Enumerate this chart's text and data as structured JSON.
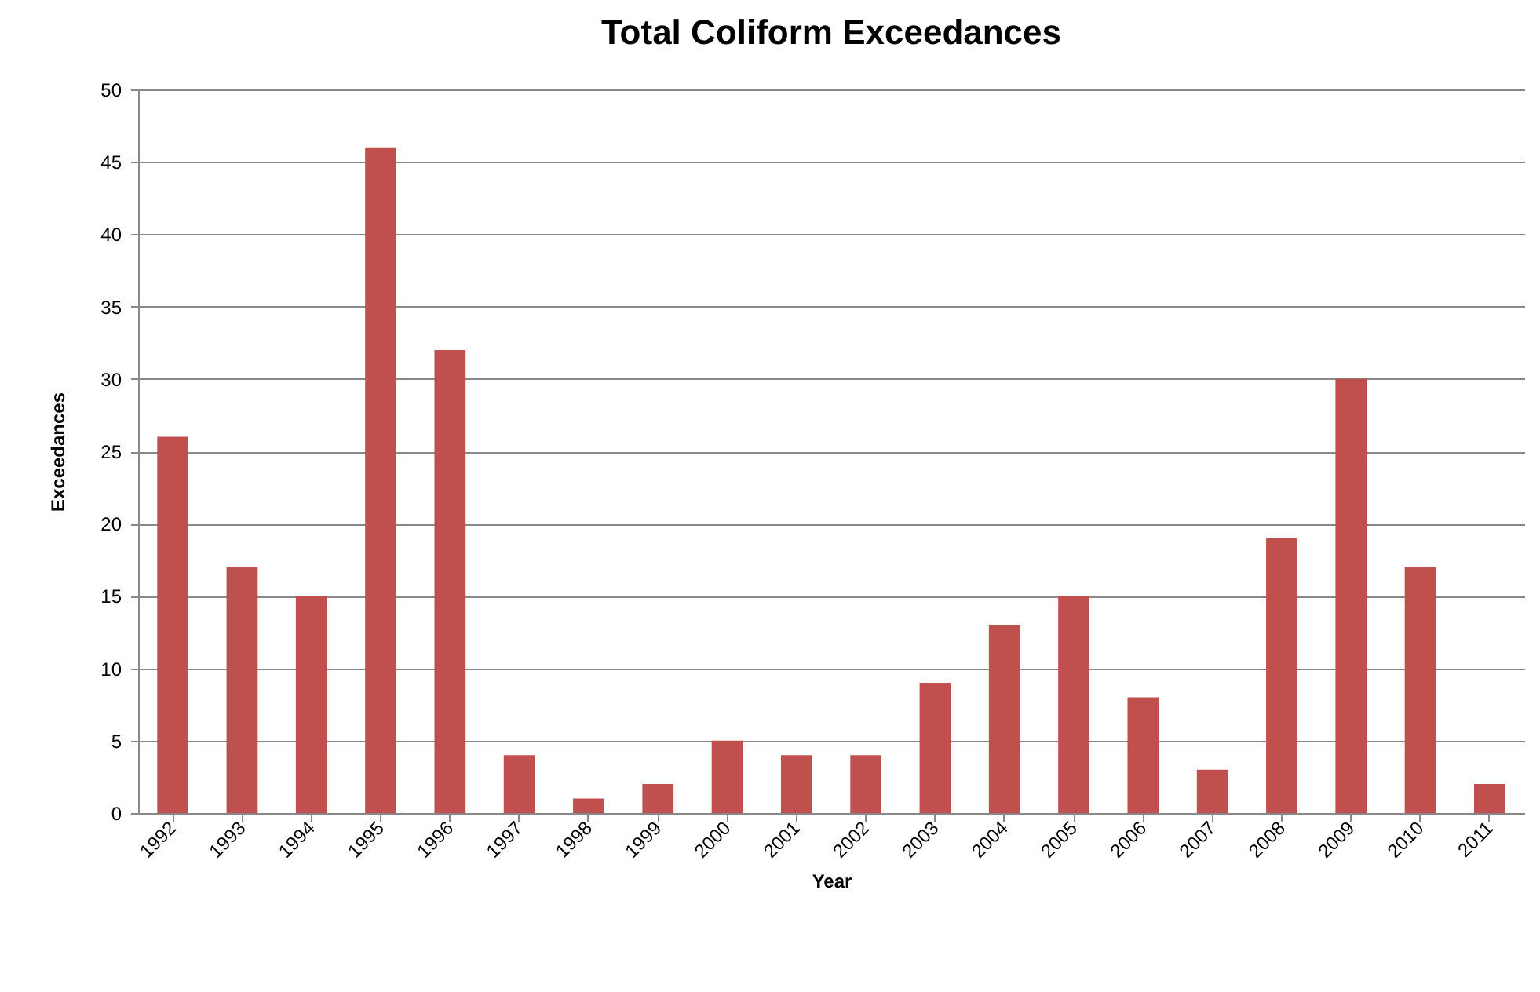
{
  "chart_data": {
    "type": "bar",
    "title": "Total Coliform Exceedances",
    "xlabel": "Year",
    "ylabel": "Exceedances",
    "categories": [
      "1992",
      "1993",
      "1994",
      "1995",
      "1996",
      "1997",
      "1998",
      "1999",
      "2000",
      "2001",
      "2002",
      "2003",
      "2004",
      "2005",
      "2006",
      "2007",
      "2008",
      "2009",
      "2010",
      "2011"
    ],
    "values": [
      26,
      17,
      15,
      46,
      32,
      4,
      1,
      2,
      5,
      4,
      4,
      9,
      13,
      15,
      8,
      3,
      19,
      30,
      17,
      2
    ],
    "color": "#c0504d",
    "ylim": [
      0,
      50
    ],
    "yticks": [
      0,
      5,
      10,
      15,
      20,
      25,
      30,
      35,
      40,
      45,
      50
    ],
    "grid": "y"
  }
}
